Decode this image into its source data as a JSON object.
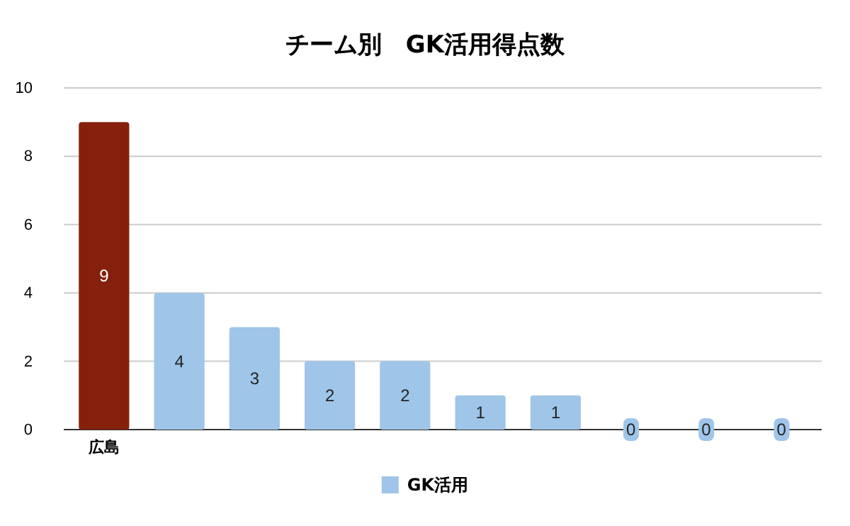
{
  "chart_data": {
    "type": "bar",
    "title": "チーム別　GK活用得点数",
    "categories": [
      "広島",
      null,
      null,
      null,
      null,
      null,
      null,
      null,
      null,
      null
    ],
    "series": [
      {
        "name": "GK活用",
        "color": "#9fc5e8",
        "colors": [
          "#85200c",
          "#9fc5e8",
          "#9fc5e8",
          "#9fc5e8",
          "#9fc5e8",
          "#9fc5e8",
          "#9fc5e8",
          "#9fc5e8",
          "#9fc5e8",
          "#9fc5e8"
        ],
        "values": [
          9,
          4,
          3,
          2,
          2,
          1,
          1,
          0,
          0,
          0
        ]
      }
    ],
    "ylim": [
      0,
      10
    ],
    "yticks": [
      0,
      2,
      4,
      6,
      8,
      10
    ],
    "grid": "y",
    "legend": "bottom",
    "data_labels": true
  }
}
